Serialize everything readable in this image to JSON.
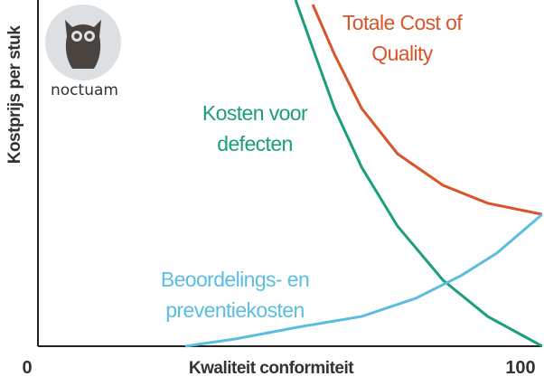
{
  "logo": {
    "text": "noctuam"
  },
  "chart_data": {
    "type": "line",
    "x_label": "Kwaliteit conformiteit",
    "y_label": "Kostprijs per stuk",
    "xlim": [
      0,
      100
    ],
    "xticks": [
      0,
      100
    ],
    "ylim": [
      0,
      100
    ],
    "series": [
      {
        "name": "Totale Cost of Quality",
        "color": "#d9532b",
        "x": [
          54.5,
          58.8,
          64.2,
          71.3,
          80.3,
          89.2,
          100
        ],
        "values": [
          98.7,
          84.3,
          68.7,
          55.6,
          46.5,
          41.3,
          38.1
        ]
      },
      {
        "name": "Kosten voor defecten",
        "color": "#1a9e7b",
        "x": [
          51.1,
          54.3,
          58.8,
          64.2,
          71.3,
          80.3,
          89.2,
          100
        ],
        "values": [
          100,
          86.9,
          68.7,
          51.7,
          34.7,
          19.1,
          8.6,
          0
        ]
      },
      {
        "name": "Beoordelings- en preventiekosten",
        "color": "#5bbde0",
        "x": [
          29.2,
          39.1,
          51.6,
          64.2,
          74.9,
          83.9,
          91.0,
          100
        ],
        "values": [
          0,
          2.1,
          5.5,
          8.6,
          13.8,
          20.4,
          26.9,
          38.1
        ]
      }
    ]
  }
}
